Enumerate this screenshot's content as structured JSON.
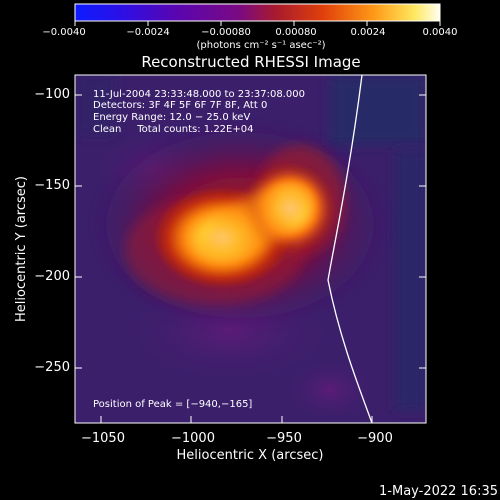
{
  "colorbar": {
    "ticks": [
      "−0.0040",
      "−0.0024",
      "−0.00080",
      "0.00080",
      "0.0024",
      "0.0040"
    ],
    "units": "(photons cm⁻² s⁻¹ asec⁻²)"
  },
  "plot": {
    "title": "Reconstructed RHESSI Image",
    "xlabel": "Heliocentric X (arcsec)",
    "ylabel": "Heliocentric Y (arcsec)",
    "xticks": [
      "−1050",
      "−1000",
      "−950",
      "−900"
    ],
    "yticks": [
      "−100",
      "−150",
      "−200",
      "−250"
    ],
    "info": [
      "11-Jul-2004 23:33:48.000 to 23:37:08.000",
      "Detectors: 3F 4F 5F 6F 7F 8F, Att 0",
      "Energy Range: 12.0 − 25.0 keV",
      "Clean     Total counts: 1.22E+04"
    ],
    "peak": "Position of Peak = [−940,−165]"
  },
  "timestamp": "1-May-2022 16:35"
}
